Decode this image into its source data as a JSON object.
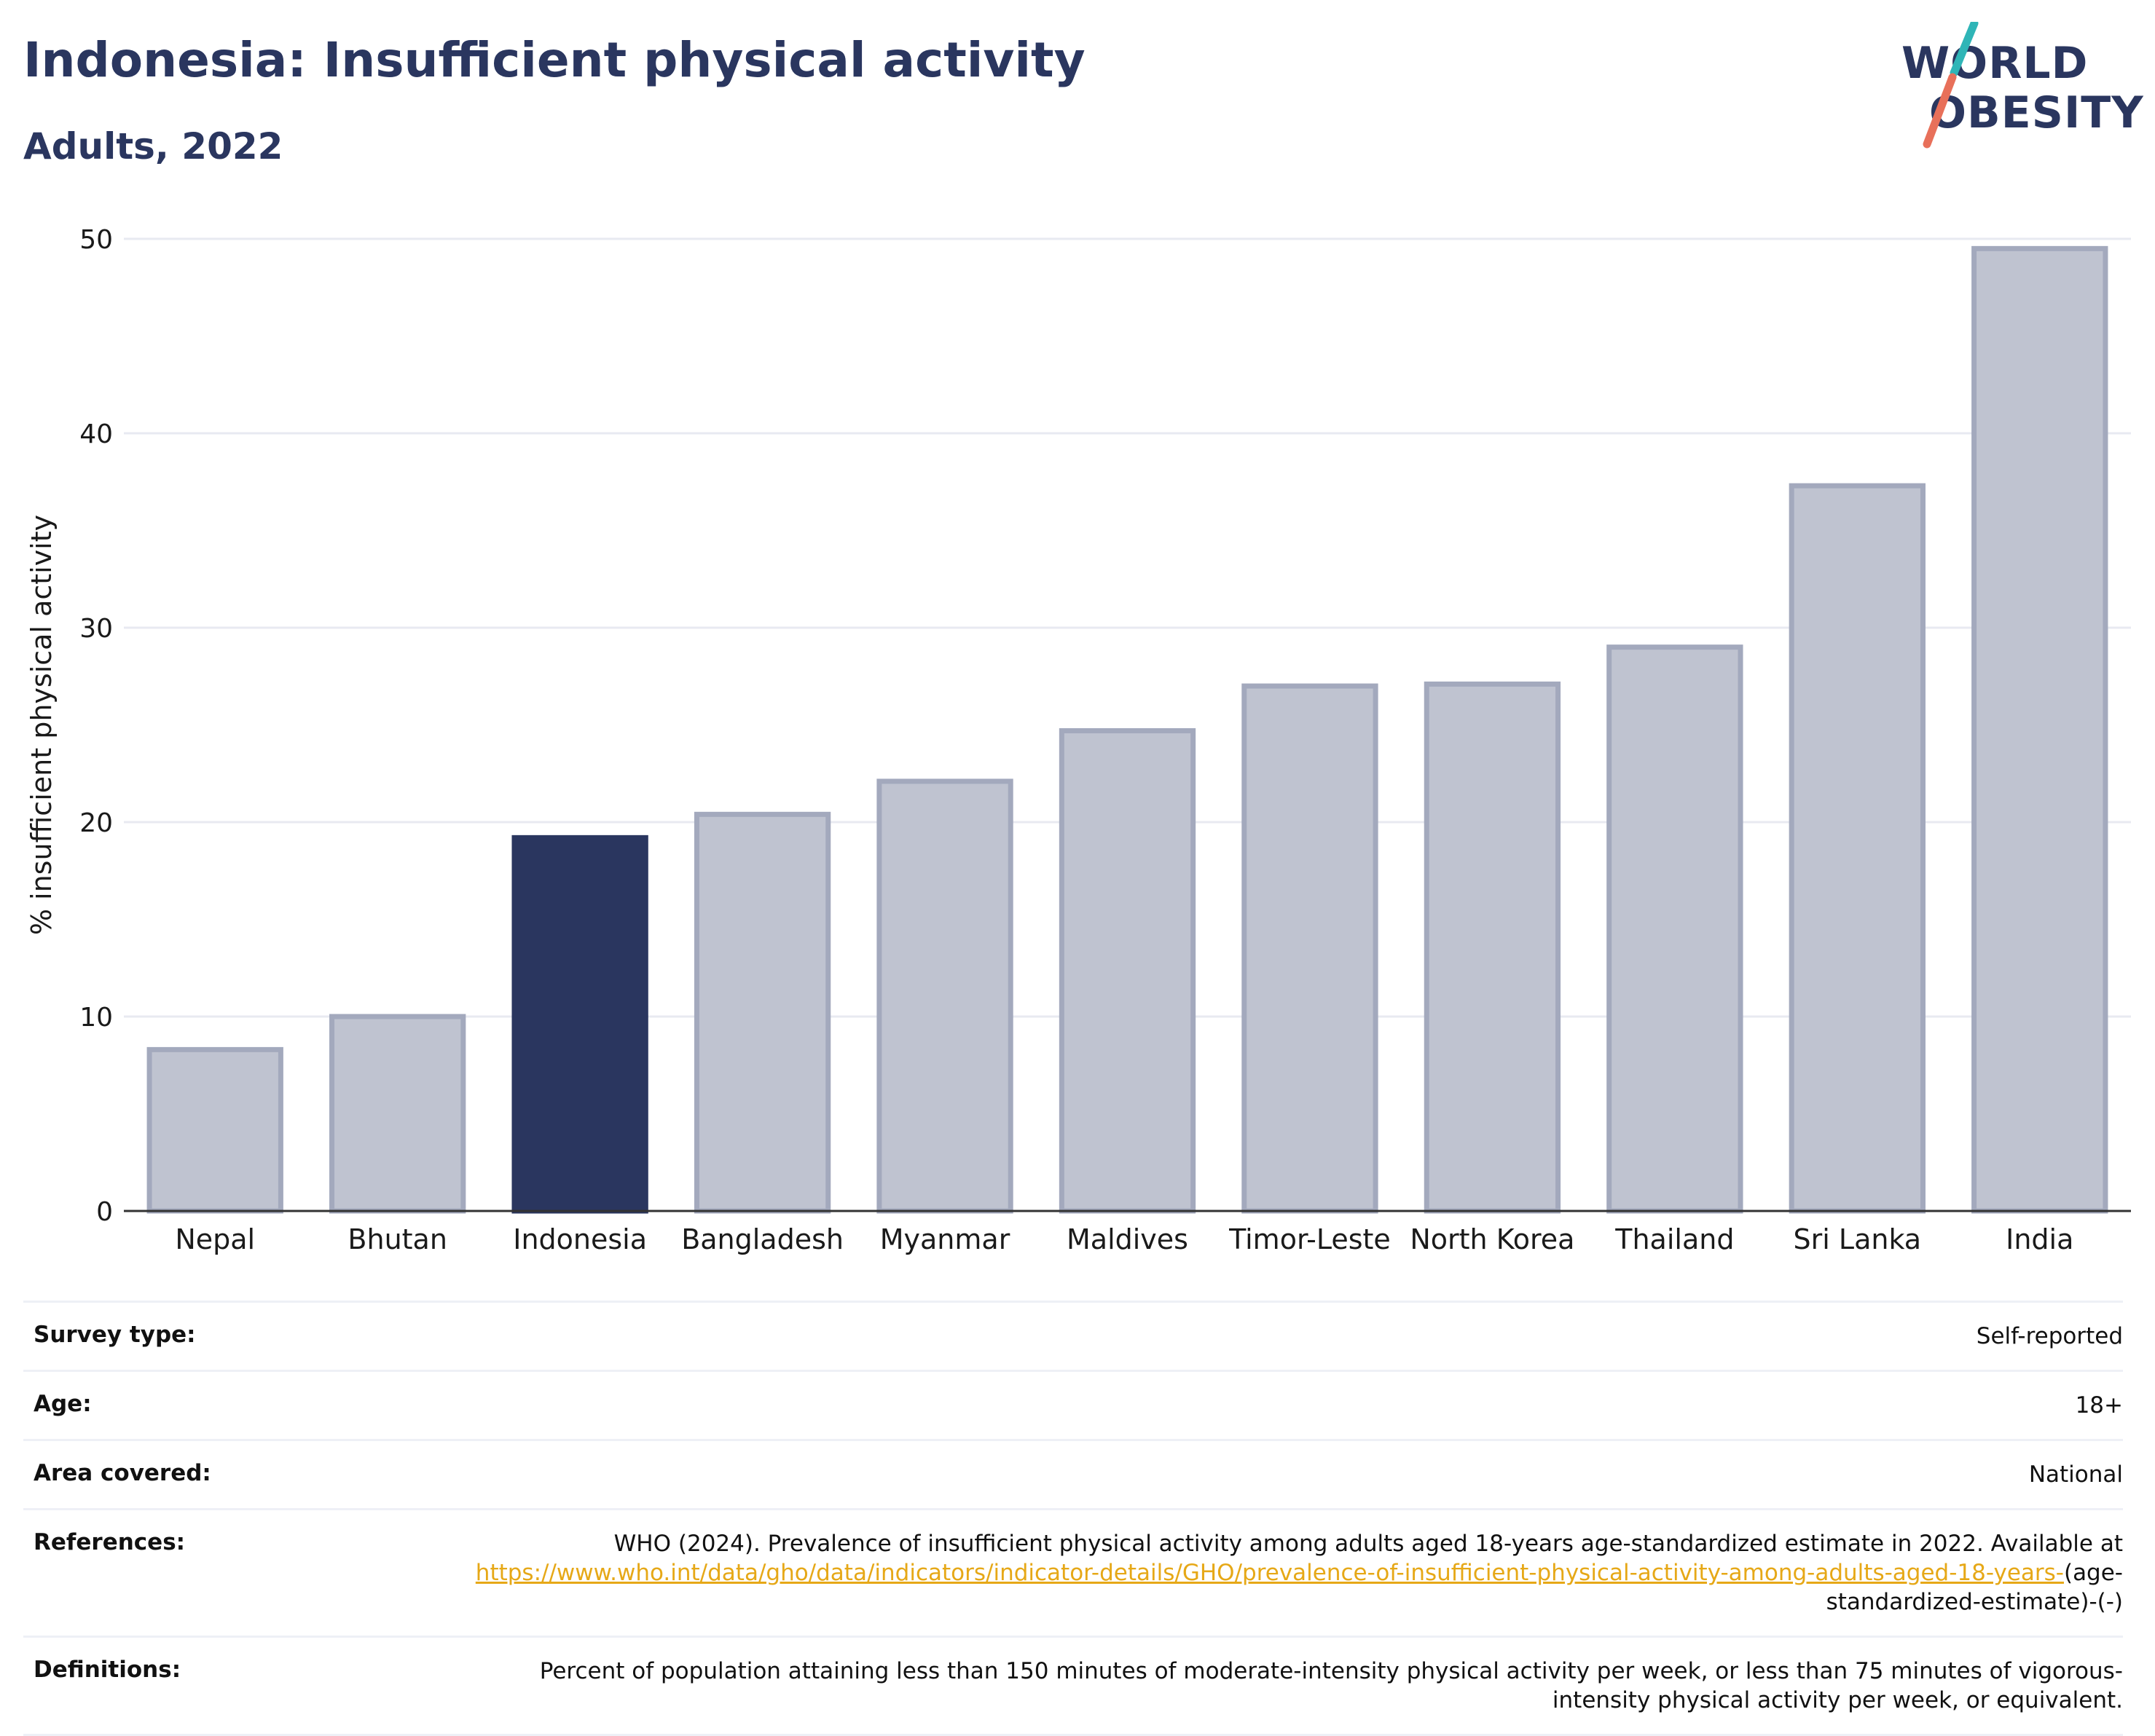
{
  "header": {
    "title": "Indonesia: Insufficient physical activity",
    "subtitle": "Adults, 2022"
  },
  "logo": {
    "line1": "WORLD",
    "line2": "OBESITY",
    "colors": {
      "text": "#2a365f",
      "slash_top": "#2fb5b7",
      "slash_bottom": "#e8705a"
    }
  },
  "chart_data": {
    "type": "bar",
    "ylabel": "% insufficient physical activity",
    "xlabel": "",
    "ylim": [
      0,
      50
    ],
    "yticks": [
      0,
      10,
      20,
      30,
      40,
      50
    ],
    "grid": true,
    "categories": [
      "Nepal",
      "Bhutan",
      "Indonesia",
      "Bangladesh",
      "Myanmar",
      "Maldives",
      "Timor-Leste",
      "North Korea",
      "Thailand",
      "Sri Lanka",
      "India"
    ],
    "values": [
      8.3,
      10.0,
      19.2,
      20.4,
      22.1,
      24.7,
      27.0,
      27.1,
      29.0,
      37.3,
      49.5
    ],
    "highlight": "Indonesia",
    "colors": {
      "bar": "#bfc3d0",
      "bar_edge": "#a3a9bd",
      "highlight": "#2a365f",
      "grid": "#e8eaf1",
      "axis": "#333333"
    }
  },
  "info": {
    "rows": [
      {
        "label": "Survey type:",
        "value": "Self-reported"
      },
      {
        "label": "Age:",
        "value": "18+"
      },
      {
        "label": "Area covered:",
        "value": "National"
      }
    ],
    "references": {
      "label": "References:",
      "text": "WHO (2024). Prevalence of insufficient physical activity among adults aged 18-years age-standardized estimate in 2022. Available at",
      "link": "https://www.who.int/data/gho/data/indicators/indicator-details/GHO/prevalence-of-insufficient-physical-activity-among-adults-aged-18-years-",
      "suffix": "(age-standardized-estimate)-(-)"
    },
    "definitions": {
      "label": "Definitions:",
      "text": "Percent of population attaining less than 150 minutes of moderate-intensity physical activity per week, or less than 75 minutes of vigorous-intensity physical activity per week, or equivalent."
    }
  }
}
